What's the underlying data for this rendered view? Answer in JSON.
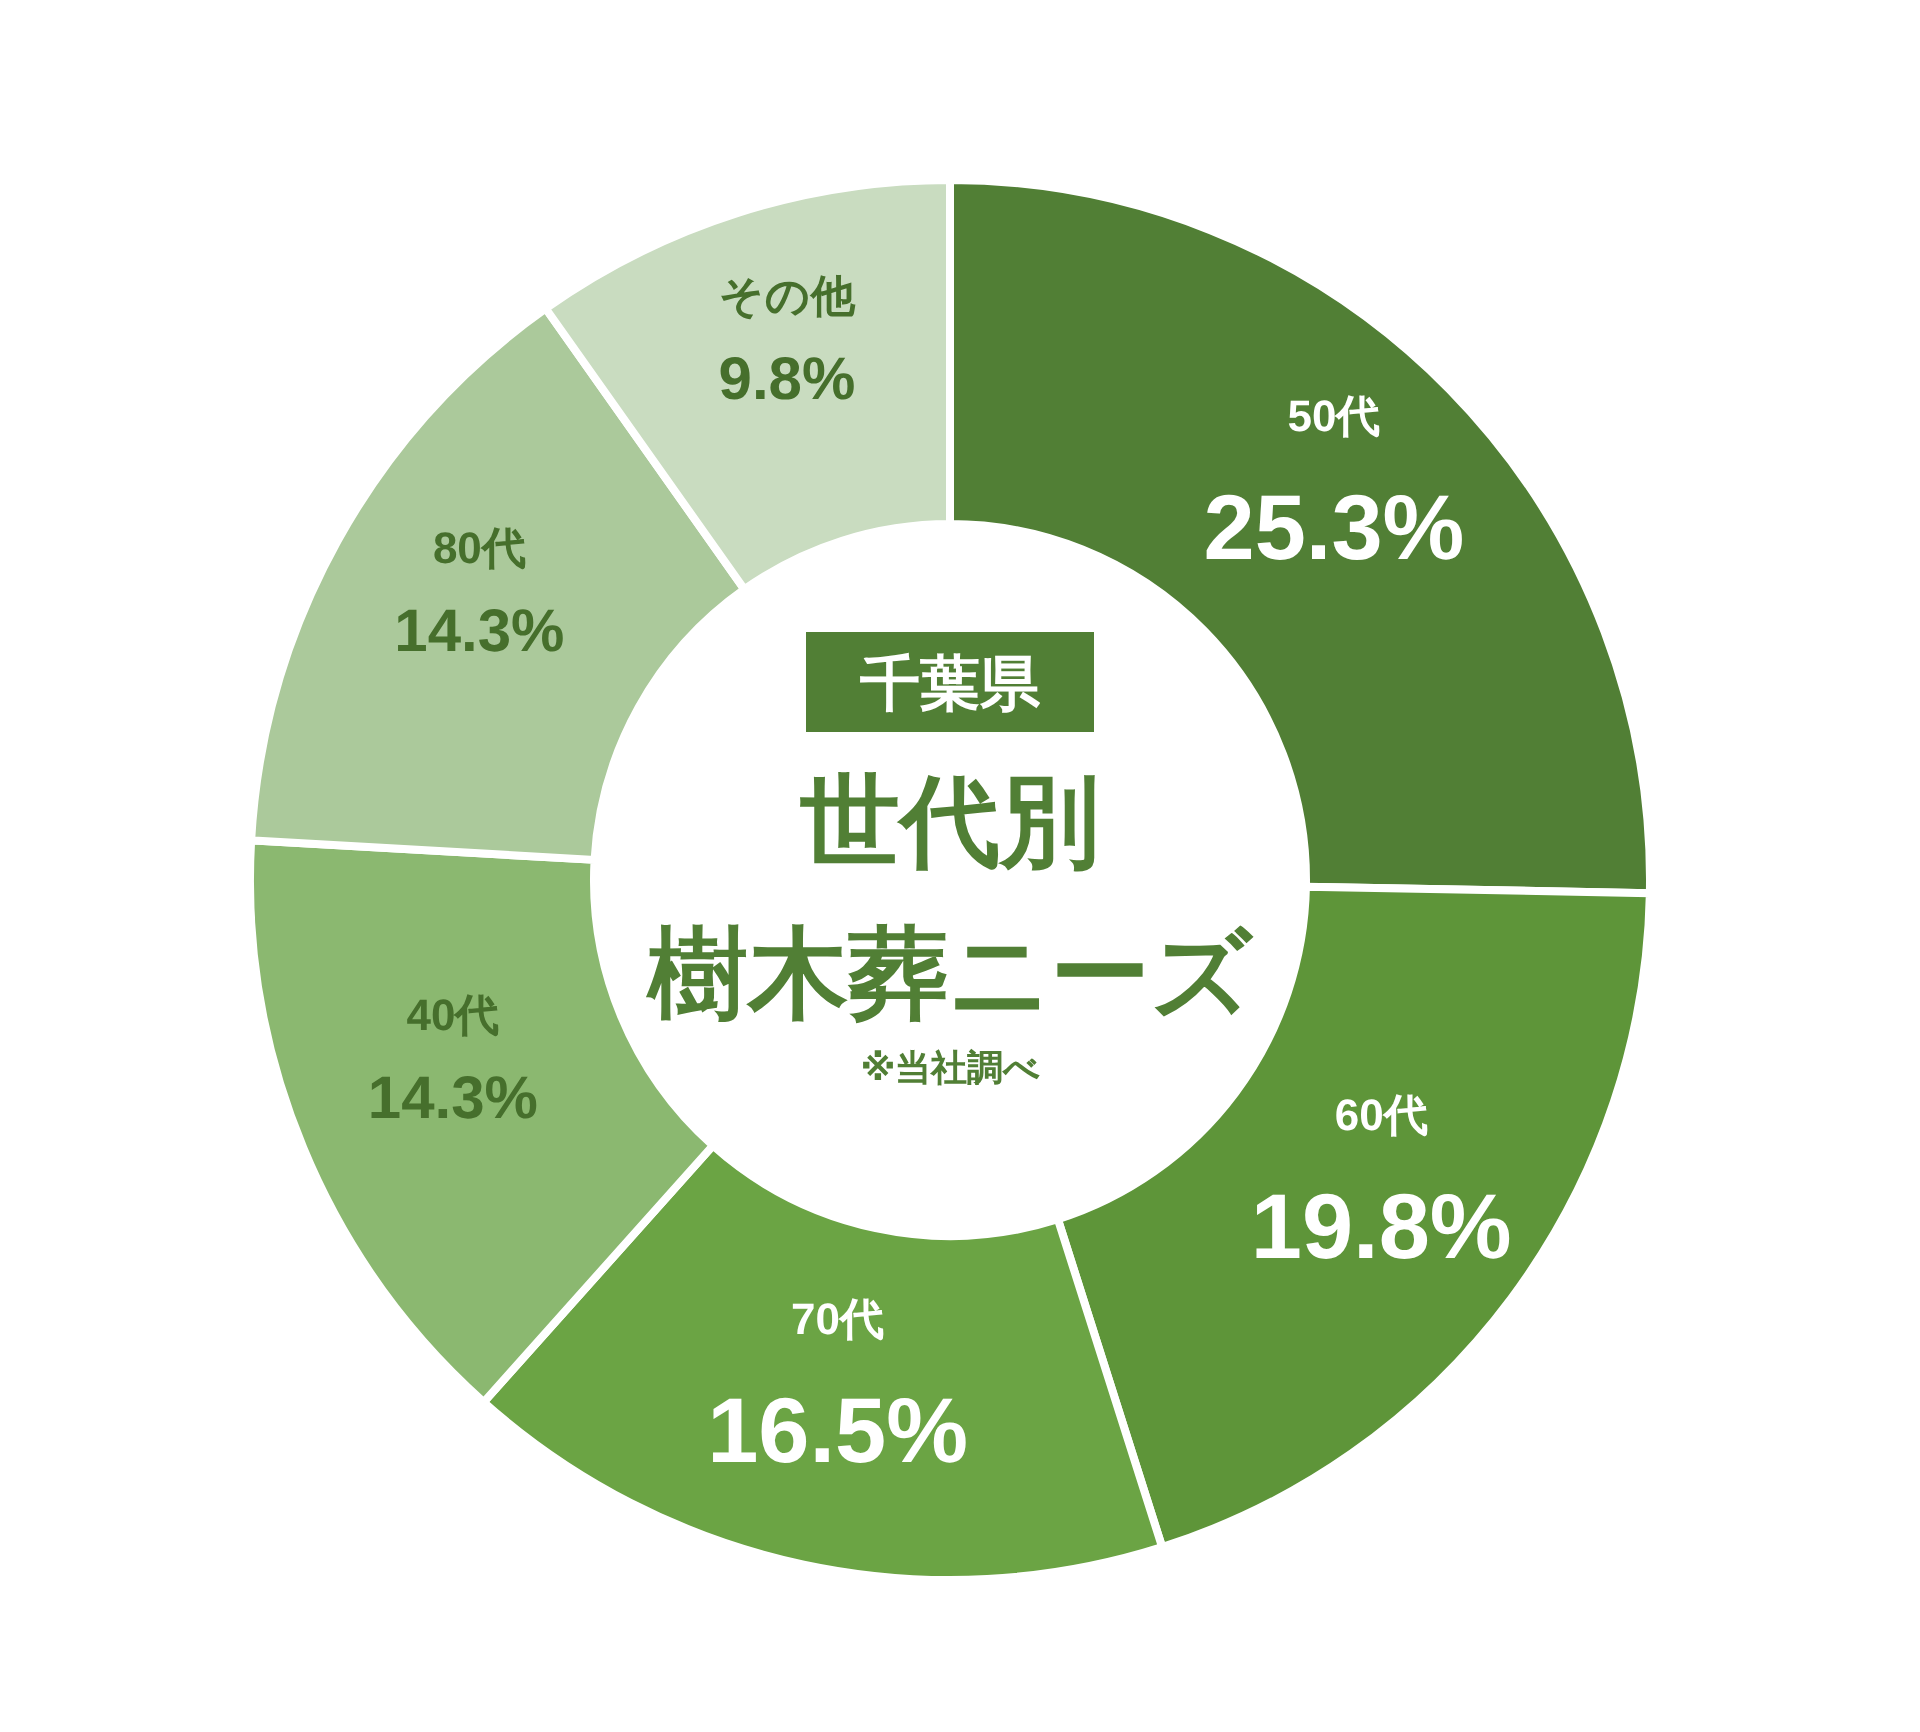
{
  "chart_data": {
    "type": "donut",
    "title": "千葉県",
    "subtitle": "世代別",
    "annotations": [
      "樹木葬ニーズ",
      "※当社調べ"
    ],
    "categories": [
      "50代",
      "60代",
      "70代",
      "40代",
      "80代",
      "その他"
    ],
    "values": [
      25.3,
      19.8,
      16.5,
      14.3,
      14.3,
      9.8
    ],
    "colors": [
      "#517f35",
      "#5e9539",
      "#6ba444",
      "#8bb870",
      "#abc99b",
      "#c9dcc0"
    ],
    "value_labels": [
      "25.3%",
      "19.8%",
      "16.5%",
      "14.3%",
      "14.3%",
      "9.8%"
    ]
  }
}
